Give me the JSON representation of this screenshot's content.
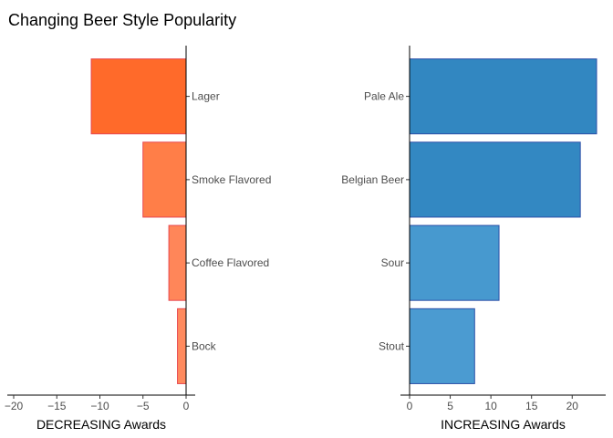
{
  "title": "Changing Beer Style Popularity",
  "chart_data": [
    {
      "type": "bar",
      "orientation": "horizontal",
      "xlabel": "DECREASING Awards",
      "categories": [
        "Lager",
        "Smoke Flavored",
        "Coffee Flavored",
        "Bock"
      ],
      "values": [
        -11,
        -5,
        -2,
        -1
      ],
      "xlim": [
        -20,
        0
      ],
      "xticks": [
        -20,
        -15,
        -10,
        -5,
        0
      ],
      "category_axis_side": "right",
      "colors": [
        "#FF6A2A",
        "#FF7E48",
        "#FF8659",
        "#FF8A5E"
      ],
      "outline_color": "#E8474F",
      "grid": false
    },
    {
      "type": "bar",
      "orientation": "horizontal",
      "xlabel": "INCREASING Awards",
      "categories": [
        "Pale Ale",
        "Belgian Beer",
        "Sour",
        "Stout"
      ],
      "values": [
        23,
        21,
        11,
        8
      ],
      "xlim": [
        0,
        23
      ],
      "xticks": [
        0,
        5,
        10,
        15,
        20
      ],
      "category_axis_side": "left",
      "colors": [
        "#3287C1",
        "#3388C2",
        "#4799CF",
        "#4B9BD1"
      ],
      "outline_color": "#2B4FA8",
      "grid": false
    }
  ]
}
